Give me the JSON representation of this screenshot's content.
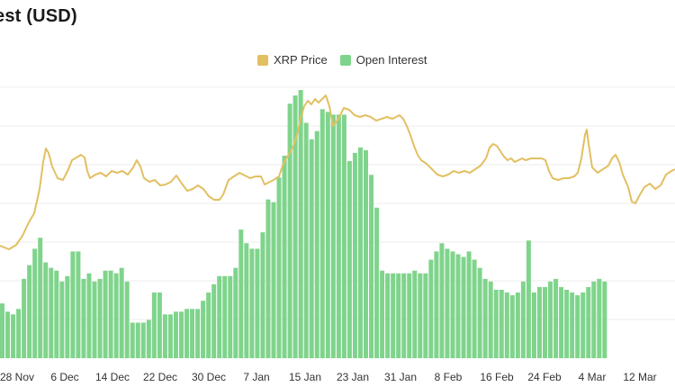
{
  "colors": {
    "price": "#e2c062",
    "oi": "#7fd48c",
    "grid": "#ececec"
  },
  "chart_data": {
    "type": "bar",
    "title": "est (USD)",
    "legend_placement": "top",
    "grid": true,
    "series": [
      {
        "name": "XRP Price",
        "type": "line"
      },
      {
        "name": "Open Interest",
        "type": "bar"
      }
    ],
    "xticks": [
      "28 Nov",
      "6 Dec",
      "14 Dec",
      "22 Dec",
      "30 Dec",
      "7 Jan",
      "15 Jan",
      "23 Jan",
      "31 Jan",
      "8 Feb",
      "16 Feb",
      "24 Feb",
      "4 Mar",
      "12 Mar"
    ],
    "open_interest": [
      20,
      17,
      16,
      18,
      29,
      34,
      40,
      44,
      35,
      33,
      32,
      28,
      30,
      39,
      39,
      29,
      31,
      28,
      29,
      32,
      32,
      31,
      33,
      28,
      13,
      13,
      13,
      14,
      24,
      24,
      16,
      16,
      17,
      17,
      18,
      18,
      18,
      21,
      24,
      27,
      30,
      30,
      30,
      33,
      47,
      42,
      40,
      40,
      46,
      58,
      57,
      66,
      74,
      93,
      96,
      98,
      86,
      80,
      83,
      91,
      90,
      89,
      89,
      89,
      72,
      75,
      77,
      76,
      67,
      55,
      32,
      31,
      31,
      31,
      31,
      31,
      32,
      31,
      31,
      36,
      39,
      42,
      40,
      39,
      38,
      37,
      39,
      36,
      33,
      29,
      28,
      25,
      25,
      24,
      23,
      24,
      28,
      43,
      24,
      26,
      26,
      28,
      29,
      26,
      25,
      24,
      23,
      24,
      26,
      28,
      29,
      28
    ]
  }
}
